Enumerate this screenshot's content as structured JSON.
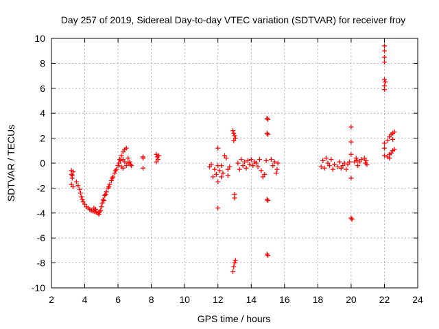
{
  "chart_data": {
    "type": "scatter",
    "title": "Day 257 of 2019, Sidereal Day-to-day VTEC variation (SDTVAR) for receiver froy",
    "xlabel": "GPS time / hours",
    "ylabel": "SDTVAR / TECUs",
    "xlim": [
      2,
      24
    ],
    "ylim": [
      -10,
      10
    ],
    "x_ticks": [
      2,
      4,
      6,
      8,
      10,
      12,
      14,
      16,
      18,
      20,
      22,
      24
    ],
    "y_ticks": [
      -10,
      -8,
      -6,
      -4,
      -2,
      0,
      2,
      4,
      6,
      8,
      10
    ],
    "grid": true,
    "marker": "+",
    "color": "#ff0000",
    "series": [
      {
        "name": "SDTVAR",
        "points": [
          [
            3.2,
            -0.6
          ],
          [
            3.2,
            -0.9
          ],
          [
            3.25,
            -1.2
          ],
          [
            3.2,
            -1.7
          ],
          [
            3.3,
            -1.9
          ],
          [
            3.3,
            -0.7
          ],
          [
            3.25,
            -1.0
          ],
          [
            3.5,
            -1.5
          ],
          [
            3.6,
            -1.8
          ],
          [
            3.7,
            -2.1
          ],
          [
            3.75,
            -2.4
          ],
          [
            3.8,
            -2.7
          ],
          [
            3.85,
            -2.9
          ],
          [
            3.9,
            -3.1
          ],
          [
            4.0,
            -3.3
          ],
          [
            4.1,
            -3.5
          ],
          [
            4.2,
            -3.6
          ],
          [
            4.3,
            -3.7
          ],
          [
            4.4,
            -3.8
          ],
          [
            4.5,
            -3.85
          ],
          [
            4.6,
            -3.9
          ],
          [
            4.7,
            -3.95
          ],
          [
            4.8,
            -4.0
          ],
          [
            4.9,
            -3.9
          ],
          [
            4.95,
            -3.8
          ],
          [
            4.55,
            -3.6
          ],
          [
            4.65,
            -3.7
          ],
          [
            4.85,
            -4.1
          ],
          [
            5.0,
            -3.5
          ],
          [
            5.05,
            -3.2
          ],
          [
            5.1,
            -2.9
          ],
          [
            5.2,
            -2.6
          ],
          [
            5.3,
            -2.3
          ],
          [
            5.4,
            -2.0
          ],
          [
            5.5,
            -1.7
          ],
          [
            5.6,
            -1.4
          ],
          [
            5.7,
            -1.1
          ],
          [
            5.8,
            -0.8
          ],
          [
            5.9,
            -0.5
          ],
          [
            6.0,
            -0.2
          ],
          [
            5.15,
            -3.0
          ],
          [
            5.25,
            -2.5
          ],
          [
            5.45,
            -1.9
          ],
          [
            5.65,
            -1.2
          ],
          [
            5.85,
            -0.6
          ],
          [
            6.1,
            0.3
          ],
          [
            6.2,
            0.6
          ],
          [
            6.3,
            0.9
          ],
          [
            6.4,
            1.1
          ],
          [
            6.5,
            1.2
          ],
          [
            6.05,
            0.0
          ],
          [
            6.15,
            0.2
          ],
          [
            6.2,
            -0.3
          ],
          [
            6.3,
            -0.4
          ],
          [
            6.4,
            0.1
          ],
          [
            6.5,
            -0.2
          ],
          [
            6.6,
            0.0
          ],
          [
            6.7,
            0.1
          ],
          [
            6.8,
            -0.2
          ],
          [
            6.3,
            0.3
          ],
          [
            6.6,
            0.4
          ],
          [
            6.75,
            -0.1
          ],
          [
            7.5,
            0.4
          ],
          [
            7.5,
            0.5
          ],
          [
            7.5,
            -0.4
          ],
          [
            8.3,
            0.7
          ],
          [
            8.35,
            0.5
          ],
          [
            8.4,
            0.3
          ],
          [
            8.3,
            0.1
          ],
          [
            8.45,
            0.6
          ],
          [
            11.5,
            -0.3
          ],
          [
            11.6,
            -0.1
          ],
          [
            11.7,
            -1.1
          ],
          [
            11.8,
            -0.5
          ],
          [
            11.9,
            -0.9
          ],
          [
            12.0,
            -0.2
          ],
          [
            12.0,
            1.2
          ],
          [
            12.0,
            -1.5
          ],
          [
            12.0,
            -3.6
          ],
          [
            12.1,
            -0.6
          ],
          [
            12.2,
            -0.2
          ],
          [
            12.3,
            -0.8
          ],
          [
            12.4,
            0.6
          ],
          [
            12.5,
            0.4
          ],
          [
            12.6,
            -0.5
          ],
          [
            12.6,
            -1.0
          ],
          [
            12.7,
            -0.3
          ],
          [
            12.2,
            -1.1
          ],
          [
            12.9,
            2.6
          ],
          [
            12.95,
            2.4
          ],
          [
            13.0,
            2.2
          ],
          [
            13.05,
            2.0
          ],
          [
            12.95,
            1.8
          ],
          [
            13.0,
            -2.5
          ],
          [
            13.0,
            -2.8
          ],
          [
            12.9,
            -8.7
          ],
          [
            12.95,
            -8.3
          ],
          [
            13.0,
            -8.0
          ],
          [
            13.05,
            -7.8
          ],
          [
            13.2,
            0.0
          ],
          [
            13.3,
            -0.5
          ],
          [
            13.4,
            0.3
          ],
          [
            13.5,
            -0.2
          ],
          [
            13.6,
            0.1
          ],
          [
            13.7,
            -0.4
          ],
          [
            13.8,
            0.2
          ],
          [
            13.9,
            -0.1
          ],
          [
            14.0,
            0.3
          ],
          [
            14.1,
            -0.2
          ],
          [
            14.2,
            0.1
          ],
          [
            14.3,
            0.0
          ],
          [
            14.4,
            -0.3
          ],
          [
            14.5,
            0.3
          ],
          [
            14.6,
            -0.6
          ],
          [
            14.7,
            -1.1
          ],
          [
            14.8,
            -0.9
          ],
          [
            14.9,
            0.2
          ],
          [
            14.95,
            3.6
          ],
          [
            15.0,
            3.5
          ],
          [
            14.95,
            2.4
          ],
          [
            15.0,
            2.3
          ],
          [
            14.95,
            -2.9
          ],
          [
            15.0,
            -3.0
          ],
          [
            14.95,
            -7.3
          ],
          [
            15.0,
            -7.4
          ],
          [
            15.2,
            0.3
          ],
          [
            15.3,
            -0.2
          ],
          [
            15.4,
            0.1
          ],
          [
            15.5,
            -0.8
          ],
          [
            15.6,
            0.0
          ],
          [
            15.55,
            -0.5
          ],
          [
            18.2,
            -0.3
          ],
          [
            18.3,
            0.2
          ],
          [
            18.4,
            -0.4
          ],
          [
            18.5,
            0.4
          ],
          [
            18.6,
            0.0
          ],
          [
            18.7,
            -0.2
          ],
          [
            18.8,
            0.3
          ],
          [
            18.9,
            -0.5
          ],
          [
            19.0,
            -0.1
          ],
          [
            19.2,
            -0.3
          ],
          [
            19.3,
            0.1
          ],
          [
            19.4,
            -0.4
          ],
          [
            19.5,
            -0.2
          ],
          [
            19.6,
            0.0
          ],
          [
            19.7,
            -0.5
          ],
          [
            19.8,
            -0.1
          ],
          [
            19.9,
            0.1
          ],
          [
            20.0,
            2.9
          ],
          [
            20.0,
            1.7
          ],
          [
            20.0,
            0.7
          ],
          [
            20.0,
            -1.2
          ],
          [
            20.0,
            -4.4
          ],
          [
            20.05,
            -4.5
          ],
          [
            20.2,
            0.1
          ],
          [
            20.3,
            0.4
          ],
          [
            20.35,
            0.2
          ],
          [
            20.4,
            -0.2
          ],
          [
            20.5,
            0.1
          ],
          [
            20.6,
            0.3
          ],
          [
            20.8,
            0.4
          ],
          [
            20.85,
            0.0
          ],
          [
            20.9,
            0.2
          ],
          [
            20.95,
            -0.1
          ],
          [
            22.0,
            9.4
          ],
          [
            22.0,
            9.0
          ],
          [
            22.0,
            8.5
          ],
          [
            22.0,
            8.1
          ],
          [
            22.0,
            6.7
          ],
          [
            22.0,
            6.2
          ],
          [
            22.0,
            5.9
          ],
          [
            22.05,
            6.5
          ],
          [
            22.0,
            1.6
          ],
          [
            22.0,
            1.2
          ],
          [
            22.0,
            0.6
          ],
          [
            22.2,
            1.8
          ],
          [
            22.3,
            2.1
          ],
          [
            22.4,
            2.3
          ],
          [
            22.5,
            2.4
          ],
          [
            22.6,
            2.5
          ],
          [
            22.2,
            0.5
          ],
          [
            22.3,
            0.7
          ],
          [
            22.4,
            0.8
          ],
          [
            22.5,
            1.0
          ],
          [
            22.6,
            1.1
          ],
          [
            22.3,
            0.4
          ],
          [
            22.5,
            1.9
          ]
        ]
      }
    ]
  }
}
